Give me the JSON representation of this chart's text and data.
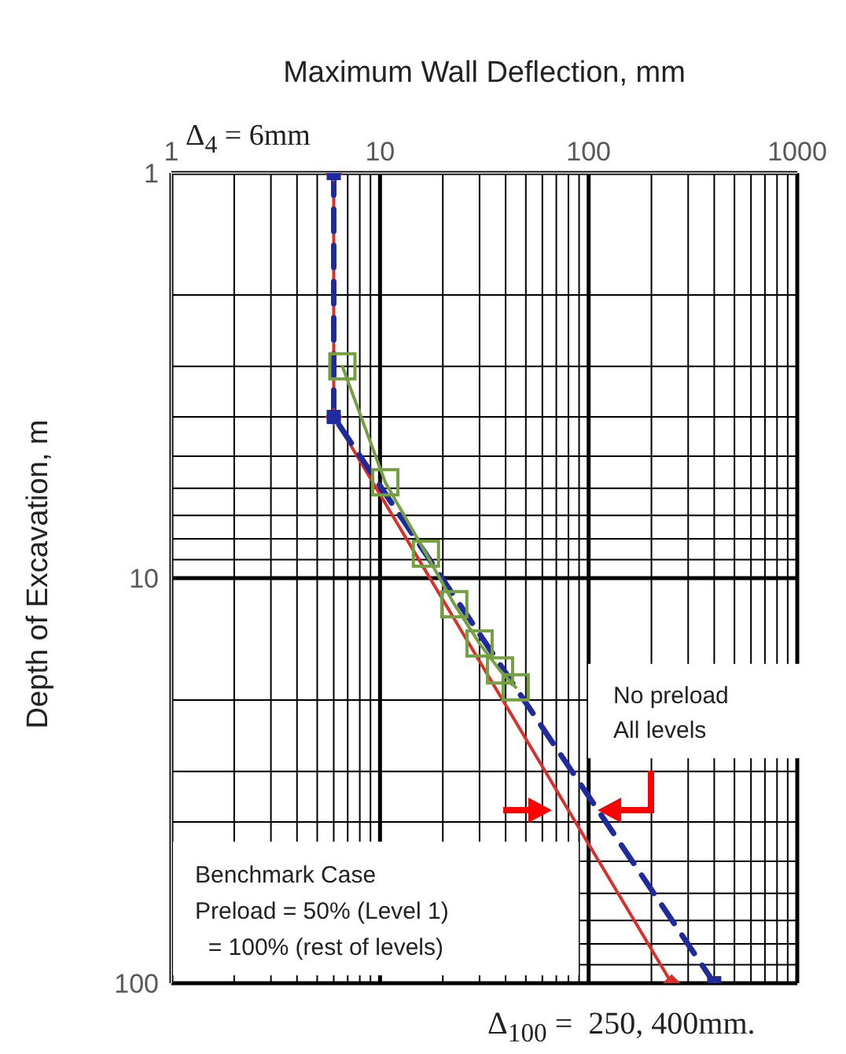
{
  "chart_data": {
    "type": "line",
    "title": "Maximum Wall Deflection, mm",
    "ylabel": "Depth of Excavation, m",
    "log": "xy",
    "grid": true,
    "line_style": "solid",
    "xlim": [
      1,
      1000
    ],
    "xticks": [
      1,
      10,
      100,
      1000
    ],
    "ylim": [
      100,
      1
    ],
    "yticks": [
      1,
      10,
      100
    ],
    "series": [
      {
        "color": "#d9302a",
        "x": [
          6,
          6,
          250
        ],
        "values": [
          1,
          4,
          100
        ],
        "marker": "diamond"
      },
      {
        "color": "#1f2a9c",
        "x": [
          6,
          6,
          400
        ],
        "values": [
          1,
          4,
          100
        ],
        "line_style": "dashed",
        "marker": "square"
      },
      {
        "color": "#74a043",
        "x": [
          6.6,
          10.6,
          16.6,
          22.7,
          30,
          37.6,
          44.7
        ],
        "values": [
          3,
          5.8,
          8.7,
          11.6,
          14.5,
          16.9,
          18.6
        ],
        "marker": "square"
      }
    ],
    "annotations": [
      "Δ$_{4}$ = 6mm",
      "No preload\nAll levels",
      "Benchmark Case\nPreload = 50% (Level 1)\n  = 100% (rest of levels)",
      "Δ$_{100}$ =  250, 400mm."
    ]
  }
}
